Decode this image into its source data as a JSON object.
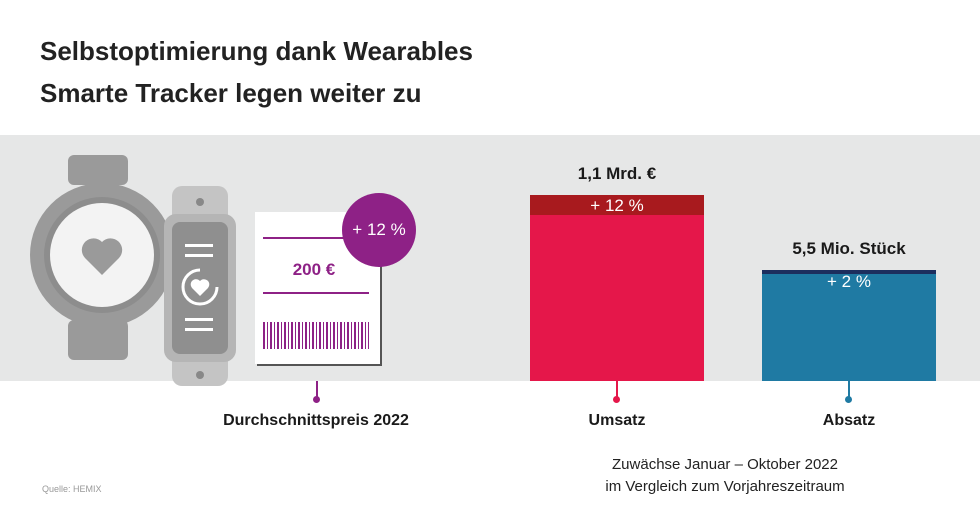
{
  "title": "Selbstoptimierung dank Wearables",
  "subtitle": "Smarte Tracker legen weiter zu",
  "receipt": {
    "price": "200 €",
    "growth": "+ 12 %",
    "label": "Durchschnittspreis 2022",
    "color": "#8e2186"
  },
  "note": [
    "Zuwächse Januar – Oktober 2022",
    "im Vergleich zum Vorjahreszeitraum"
  ],
  "source": "Quelle: HEMIX",
  "chart_data": {
    "type": "bar",
    "categories": [
      "Umsatz",
      "Absatz"
    ],
    "series": [
      {
        "name": "Umsatz",
        "value": 1.1,
        "unit": "Mrd. €",
        "value_label": "1,1 Mrd. €",
        "growth_pct": 12,
        "growth_label": "+ 12 %",
        "color": "#e5174a",
        "growth_color": "#a81a1e"
      },
      {
        "name": "Absatz",
        "value": 5.5,
        "unit": "Mio. Stück",
        "value_label": "5,5 Mio. Stück",
        "growth_pct": 2,
        "growth_label": "+ 2 %",
        "color": "#1f7aa3",
        "growth_color": "#1c2e5e"
      }
    ]
  }
}
